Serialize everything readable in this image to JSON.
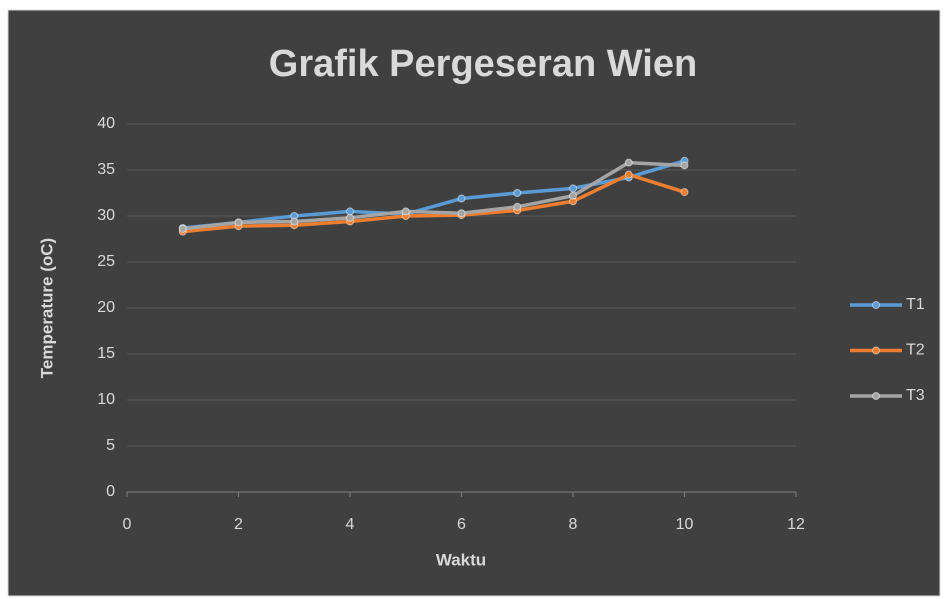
{
  "chart_data": {
    "type": "line",
    "title": "Grafik Pergeseran Wien",
    "x_label": "Waktu",
    "y_label": "Temperature (oC)",
    "x": [
      1,
      2,
      3,
      4,
      5,
      6,
      7,
      8,
      9,
      10
    ],
    "series": [
      {
        "name": "T1",
        "color": "#5b9bd5",
        "values": [
          28.7,
          29.3,
          30.0,
          30.5,
          30.2,
          31.9,
          32.5,
          33.0,
          34.2,
          36.0
        ]
      },
      {
        "name": "T2",
        "color": "#ed7d31",
        "values": [
          28.3,
          28.9,
          29.0,
          29.4,
          30.0,
          30.1,
          30.6,
          31.6,
          34.5,
          32.6
        ]
      },
      {
        "name": "T3",
        "color": "#a5a5a5",
        "values": [
          28.6,
          29.3,
          29.4,
          29.8,
          30.5,
          30.3,
          31.0,
          32.2,
          35.8,
          35.5
        ]
      }
    ],
    "xlim": [
      0,
      12
    ],
    "xticks": [
      0,
      2,
      4,
      6,
      8,
      10,
      12
    ],
    "ylim": [
      0,
      40
    ],
    "yticks": [
      0,
      5,
      10,
      15,
      20,
      25,
      30,
      35,
      40
    ],
    "grid": true,
    "legend": "right"
  }
}
